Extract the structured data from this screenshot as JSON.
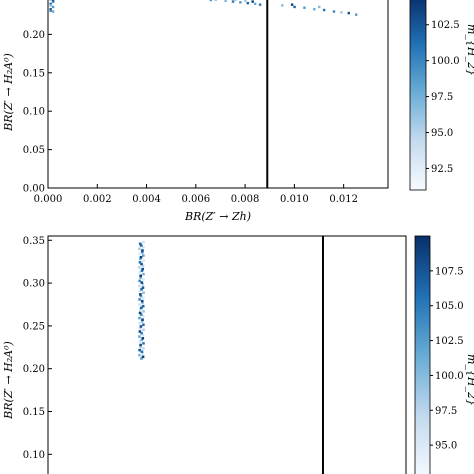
{
  "chart_data": [
    {
      "type": "scatter",
      "title": "",
      "xlabel": "BR(Z′ → Zh)",
      "ylabel": "BR(Z′ → H₂A⁰)",
      "xlim": [
        0.0,
        0.0138
      ],
      "ylim": [
        0.0,
        0.25
      ],
      "x_ticks": [
        "0.000",
        "0.002",
        "0.004",
        "0.006",
        "0.008",
        "0.010",
        "0.012"
      ],
      "x_tick_values": [
        0.0,
        0.002,
        0.004,
        0.006,
        0.008,
        0.01,
        0.012
      ],
      "y_ticks": [
        "0.00",
        "0.05",
        "0.10",
        "0.15",
        "0.20"
      ],
      "y_tick_values": [
        0.0,
        0.05,
        0.1,
        0.15,
        0.2
      ],
      "vline_x": 0.0089,
      "colorbar": {
        "label": "m_{H_2}",
        "range": [
          91.0,
          104.5
        ],
        "ticks": [
          "92.5",
          "95.0",
          "97.5",
          "100.0",
          "102.5"
        ],
        "tick_values": [
          92.5,
          95.0,
          97.5,
          100.0,
          102.5
        ]
      },
      "points": [
        {
          "x": 0.0001,
          "y": 0.246,
          "c": 100
        },
        {
          "x": 0.0002,
          "y": 0.243,
          "c": 101
        },
        {
          "x": 0.0001,
          "y": 0.24,
          "c": 102
        },
        {
          "x": 0.0002,
          "y": 0.236,
          "c": 99
        },
        {
          "x": 0.0001,
          "y": 0.233,
          "c": 103
        },
        {
          "x": 0.0002,
          "y": 0.23,
          "c": 98
        },
        {
          "x": 0.0001,
          "y": 0.248,
          "c": 104
        },
        {
          "x": 0.0001,
          "y": 0.238,
          "c": 97
        },
        {
          "x": 0.0002,
          "y": 0.245,
          "c": 102
        },
        {
          "x": 0.0001,
          "y": 0.231,
          "c": 100
        },
        {
          "x": 0.006,
          "y": 0.249,
          "c": 96
        },
        {
          "x": 0.0064,
          "y": 0.247,
          "c": 98
        },
        {
          "x": 0.0068,
          "y": 0.246,
          "c": 100
        },
        {
          "x": 0.0072,
          "y": 0.244,
          "c": 97
        },
        {
          "x": 0.0075,
          "y": 0.243,
          "c": 101
        },
        {
          "x": 0.0078,
          "y": 0.242,
          "c": 99
        },
        {
          "x": 0.0081,
          "y": 0.241,
          "c": 102
        },
        {
          "x": 0.0084,
          "y": 0.24,
          "c": 98
        },
        {
          "x": 0.007,
          "y": 0.248,
          "c": 103
        },
        {
          "x": 0.0076,
          "y": 0.246,
          "c": 100
        },
        {
          "x": 0.008,
          "y": 0.244,
          "c": 96
        },
        {
          "x": 0.0086,
          "y": 0.239,
          "c": 101
        },
        {
          "x": 0.0066,
          "y": 0.245,
          "c": 99
        },
        {
          "x": 0.0083,
          "y": 0.243,
          "c": 104
        },
        {
          "x": 0.0095,
          "y": 0.238,
          "c": 97
        },
        {
          "x": 0.01,
          "y": 0.236,
          "c": 102
        },
        {
          "x": 0.0104,
          "y": 0.235,
          "c": 99
        },
        {
          "x": 0.0108,
          "y": 0.233,
          "c": 98
        },
        {
          "x": 0.0112,
          "y": 0.232,
          "c": 101
        },
        {
          "x": 0.0116,
          "y": 0.23,
          "c": 100
        },
        {
          "x": 0.0119,
          "y": 0.229,
          "c": 96
        },
        {
          "x": 0.0122,
          "y": 0.228,
          "c": 103
        },
        {
          "x": 0.0125,
          "y": 0.226,
          "c": 99
        },
        {
          "x": 0.0099,
          "y": 0.239,
          "c": 104
        },
        {
          "x": 0.011,
          "y": 0.236,
          "c": 97
        }
      ]
    },
    {
      "type": "scatter",
      "title": "",
      "xlabel": "",
      "ylabel": "BR(Z′ → H₂A⁰)",
      "xlim": [
        0.0,
        0.0138
      ],
      "ylim": [
        0.07,
        0.355
      ],
      "x_ticks": [],
      "y_ticks": [
        "0.10",
        "0.15",
        "0.20",
        "0.25",
        "0.30",
        "0.35"
      ],
      "y_tick_values": [
        0.1,
        0.15,
        0.2,
        0.25,
        0.3,
        0.35
      ],
      "vline_x": 0.0106,
      "colorbar": {
        "label": "m_{H_2}",
        "range": [
          92.5,
          110.0
        ],
        "ticks": [
          "95.0",
          "97.5",
          "100.0",
          "102.5",
          "105.0",
          "107.5"
        ],
        "tick_values": [
          95.0,
          97.5,
          100.0,
          102.5,
          105.0,
          107.5
        ]
      },
      "points_column": {
        "x": 0.0036,
        "x_spread": 8e-05,
        "y_from": 0.212,
        "y_to": 0.348,
        "count": 70,
        "c_range": [
          95.0,
          109.0
        ]
      }
    }
  ]
}
